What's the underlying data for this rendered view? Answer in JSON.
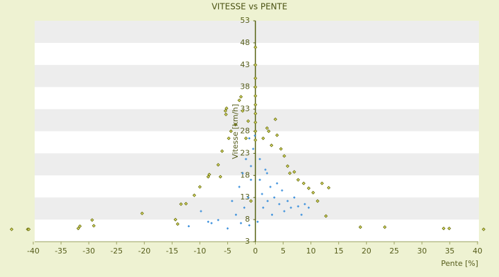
{
  "chart_data": {
    "type": "scatter",
    "title": "VITESSE vs PENTE",
    "x_label": "Pente [%]",
    "y_label": "Vitesse [km/h]",
    "xlim": [
      -40,
      40
    ],
    "ylim": [
      3,
      53
    ],
    "xticks": [
      -40,
      -35,
      -30,
      -25,
      -20,
      -15,
      -10,
      -5,
      0,
      5,
      10,
      15,
      20,
      25,
      30,
      35,
      40
    ],
    "yticks": [
      3,
      8,
      13,
      18,
      23,
      28,
      33,
      38,
      43,
      48,
      53
    ],
    "bands": true,
    "series": [
      {
        "color": "#6b7010",
        "marker": "diamond",
        "x": [
          -43.9,
          -41,
          -40.8,
          -31.9,
          -31.6,
          -29.4,
          -29.1,
          -20.4,
          -14.4,
          -14,
          -13.4,
          -12.5,
          -11,
          -10,
          -8.5,
          -8.3,
          -6.7,
          -6.3,
          -6,
          -5.4,
          -5.2,
          -5.3,
          -4.8,
          -4.4,
          -3.6,
          -2.9,
          -2.6,
          -2.3,
          -1.7,
          -1.3,
          -0.8,
          1.4,
          2.1,
          2.4,
          2.9,
          3.6,
          3.9,
          4.6,
          5.2,
          5.8,
          6.2,
          7,
          7.7,
          8.7,
          9.6,
          10.4,
          11.2,
          12,
          12.7,
          13.2,
          18.9,
          23.3,
          33.9,
          34.9,
          41.1,
          0,
          0,
          0,
          0,
          0,
          0,
          0,
          0,
          0,
          0
        ],
        "values": [
          5.8,
          5.8,
          5.8,
          6,
          6.5,
          7.9,
          6.6,
          9.4,
          8,
          7,
          11.5,
          11.6,
          13.5,
          15.4,
          17.7,
          18.2,
          20.4,
          17.7,
          23.5,
          32.6,
          33.2,
          31.8,
          26.4,
          28,
          29.5,
          35,
          35.8,
          32.6,
          26.4,
          30.3,
          12.2,
          26.4,
          28.7,
          28,
          24.8,
          30.7,
          27.1,
          24,
          22.4,
          20.1,
          18.5,
          18.8,
          17,
          16.2,
          15.1,
          14.1,
          12.2,
          16.2,
          8.8,
          15.2,
          6.3,
          6.3,
          6,
          6,
          5.8,
          47,
          43,
          40,
          38,
          36,
          34,
          32,
          30,
          28,
          26
        ]
      },
      {
        "color": "#3a8fdc",
        "marker": "plus",
        "x": [
          -12,
          -9.8,
          -8.5,
          -7.9,
          -6.7,
          -5,
          -4.2,
          -3.5,
          -2.9,
          -2.6,
          -2.3,
          -2,
          -1.7,
          -1.3,
          -1.1,
          -0.8,
          -0.4,
          -0.1,
          0.8,
          1.2,
          1.4,
          1.8,
          2.2,
          2.7,
          3,
          3.4,
          3.9,
          4.3,
          4.8,
          5.2,
          5.8,
          6.4,
          7,
          7.7,
          8.3,
          8.9,
          9.6,
          0.4,
          -1.1,
          2.1,
          -0.8,
          0.8
        ],
        "values": [
          6.5,
          9.9,
          7.5,
          7.2,
          7.9,
          6,
          12.2,
          9.1,
          15.4,
          7.2,
          18.5,
          10.7,
          21.7,
          13,
          26.4,
          20.1,
          24,
          27,
          17,
          13.8,
          10.7,
          19.3,
          12.2,
          15.4,
          9.1,
          13,
          16.2,
          11.5,
          14.6,
          9.9,
          12.2,
          10.7,
          13,
          11,
          9.1,
          11.5,
          10.7,
          7.5,
          6.7,
          18.5,
          17,
          21.7
        ]
      }
    ]
  }
}
